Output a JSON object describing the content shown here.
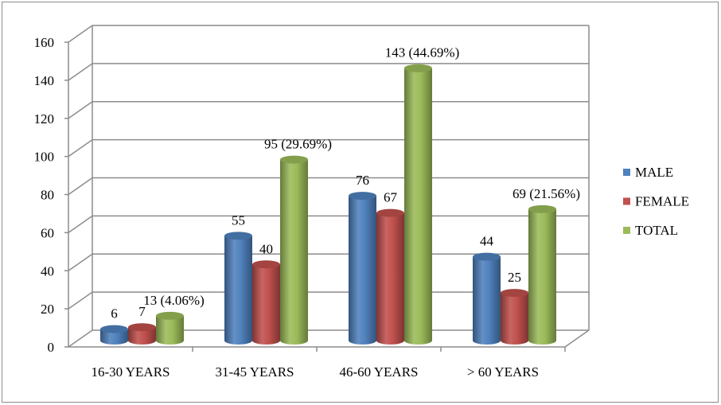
{
  "chart_data": {
    "type": "bar",
    "style": "3d-cylinder",
    "title": "",
    "xlabel": "",
    "ylabel": "",
    "categories": [
      "16-30 YEARS",
      "31-45 YEARS",
      "46-60 YEARS",
      "> 60 YEARS"
    ],
    "series": [
      {
        "name": "MALE",
        "color": "#4f81bd",
        "values": [
          6,
          55,
          76,
          44
        ],
        "labels": [
          "6",
          "55",
          "76",
          "44"
        ]
      },
      {
        "name": "FEMALE",
        "color": "#c0504d",
        "values": [
          7,
          40,
          67,
          25
        ],
        "labels": [
          "7",
          "40",
          "67",
          "25"
        ]
      },
      {
        "name": "TOTAL",
        "color": "#9bbb59",
        "values": [
          13,
          95,
          143,
          69
        ],
        "labels": [
          "13 (4.06%)",
          "95 (29.69%)",
          "143 (44.69%)",
          "69 (21.56%)"
        ]
      }
    ],
    "yticks": [
      "0",
      "20",
      "40",
      "60",
      "80",
      "100",
      "120",
      "140",
      "160"
    ],
    "ylim": [
      0,
      160
    ],
    "grid": true,
    "legend": "right"
  }
}
